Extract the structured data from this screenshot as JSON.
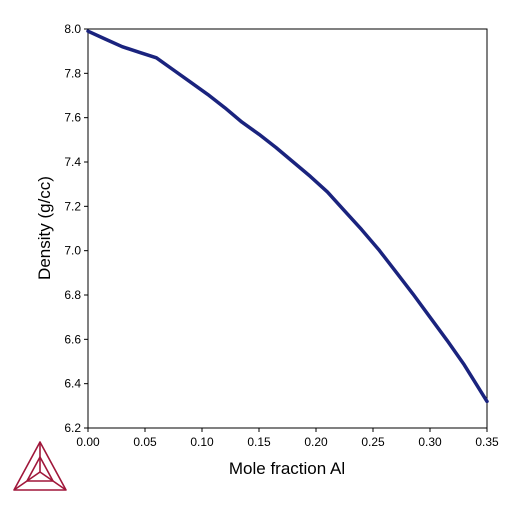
{
  "chart_data": {
    "type": "line",
    "title": "",
    "xlabel": "Mole fraction Al",
    "ylabel": "Density (g/cc)",
    "xlim": [
      0,
      0.35
    ],
    "ylim": [
      6.2,
      8.0
    ],
    "x_ticks": [
      "0.00",
      "0.05",
      "0.10",
      "0.15",
      "0.20",
      "0.25",
      "0.30",
      "0.35"
    ],
    "y_ticks": [
      "6.2",
      "6.4",
      "6.6",
      "6.8",
      "7.0",
      "7.2",
      "7.4",
      "7.6",
      "7.8",
      "8.0"
    ],
    "grid": false,
    "legend": "none",
    "series": [
      {
        "color": "#1a237e",
        "x": [
          0.0,
          0.015,
          0.03,
          0.045,
          0.06,
          0.075,
          0.09,
          0.105,
          0.12,
          0.135,
          0.15,
          0.165,
          0.18,
          0.195,
          0.21,
          0.225,
          0.24,
          0.255,
          0.27,
          0.285,
          0.3,
          0.315,
          0.33,
          0.35
        ],
        "values": [
          7.99,
          7.955,
          7.92,
          7.895,
          7.87,
          7.815,
          7.76,
          7.705,
          7.645,
          7.58,
          7.525,
          7.465,
          7.4,
          7.335,
          7.265,
          7.18,
          7.095,
          7.005,
          6.905,
          6.805,
          6.7,
          6.595,
          6.485,
          6.32
        ]
      }
    ]
  },
  "logo": {
    "name": "triangle-logo-icon",
    "color": "#a0173a"
  }
}
